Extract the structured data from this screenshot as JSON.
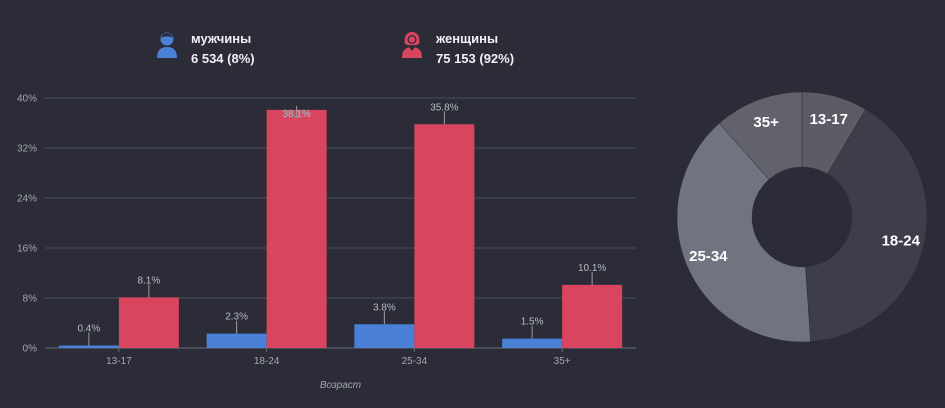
{
  "legend": {
    "male": {
      "name": "мужчины",
      "count": "6 534 (8%)",
      "icon": "male-user-icon",
      "color": "#4a80d6"
    },
    "female": {
      "name": "женщины",
      "count": "75 153 (92%)",
      "icon": "female-user-icon",
      "color": "#d9455f"
    }
  },
  "chart_data": [
    {
      "type": "bar",
      "xlabel": "Возраст",
      "ylabel": "",
      "ylim": [
        0,
        40
      ],
      "yticks": [
        "0%",
        "8%",
        "16%",
        "24%",
        "32%",
        "40%"
      ],
      "ytick_values": [
        0,
        8,
        16,
        24,
        32,
        40
      ],
      "grid": true,
      "categories": [
        "13-17",
        "18-24",
        "25-34",
        "35+"
      ],
      "series": [
        {
          "name": "мужчины",
          "color": "#4a80d6",
          "values": [
            0.4,
            2.3,
            3.8,
            1.5
          ],
          "labels": [
            "0.4%",
            "2.3%",
            "3.8%",
            "1.5%"
          ]
        },
        {
          "name": "женщины",
          "color": "#d9455f",
          "values": [
            8.1,
            38.1,
            35.8,
            10.1
          ],
          "labels": [
            "8.1%",
            "38.1%",
            "35.8%",
            "10.1%"
          ]
        }
      ]
    },
    {
      "type": "pie",
      "donut": true,
      "slices": [
        {
          "label": "13-17",
          "value": 8.5,
          "color": "#5b5c66"
        },
        {
          "label": "18-24",
          "value": 40.4,
          "color": "#3d3e49"
        },
        {
          "label": "25-34",
          "value": 39.6,
          "color": "#727380"
        },
        {
          "label": "35+",
          "value": 11.5,
          "color": "#61626c"
        }
      ]
    }
  ]
}
